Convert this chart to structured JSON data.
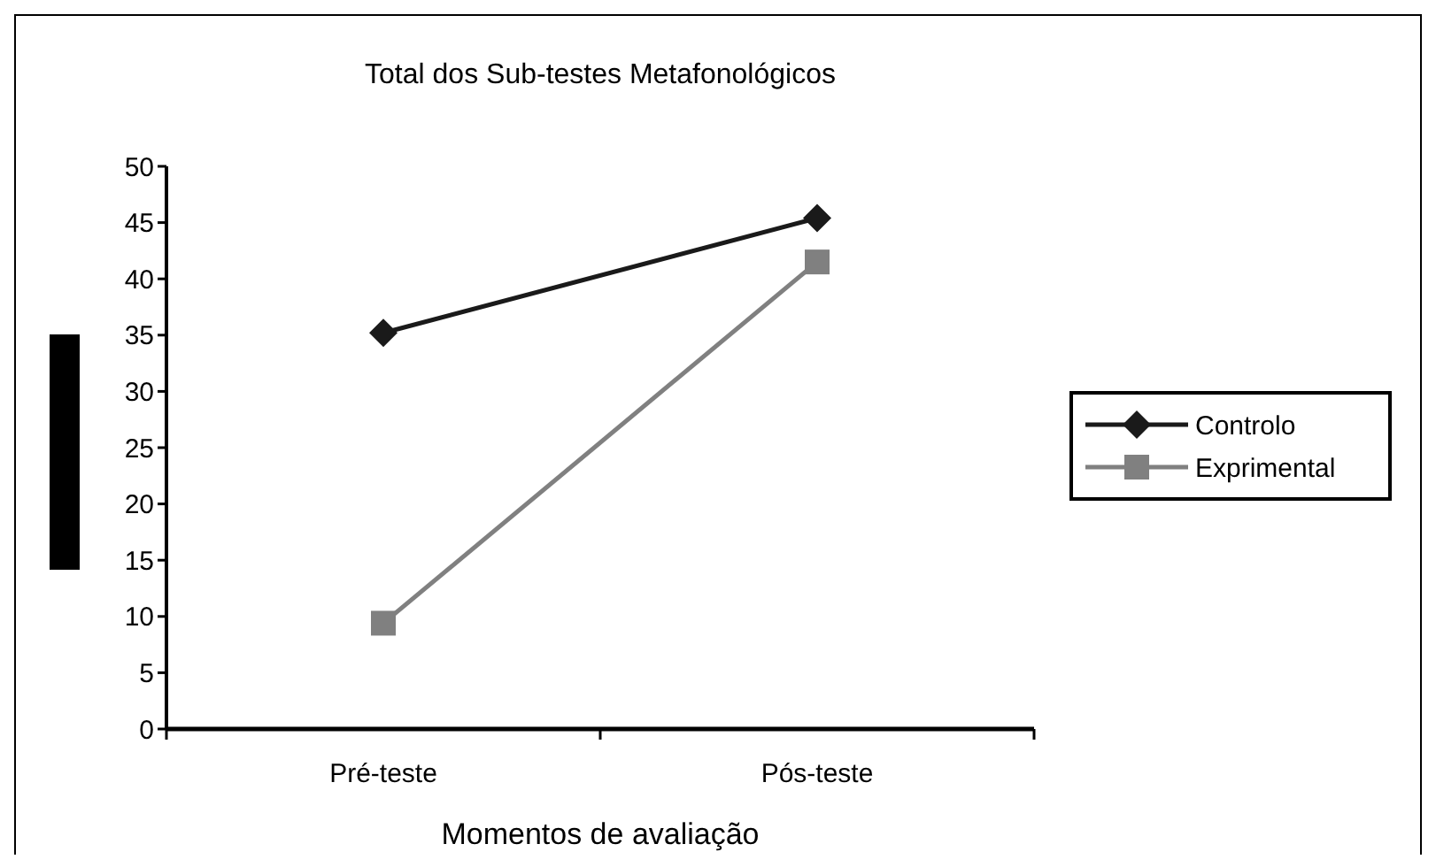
{
  "chart_data": {
    "type": "line",
    "title": "Total dos Sub-testes Metafonológicos",
    "xlabel": "Momentos de avaliação",
    "categories": [
      "Pré-teste",
      "Pós-teste"
    ],
    "series": [
      {
        "name": "Controlo",
        "color": "#1a1a1a",
        "marker": "diamond",
        "values": [
          35.2,
          45.4
        ]
      },
      {
        "name": "Exprimental",
        "color": "#808080",
        "marker": "square",
        "values": [
          9.4,
          41.5
        ]
      }
    ],
    "ylim": [
      0,
      50
    ],
    "yticks": [
      0,
      5,
      10,
      15,
      20,
      25,
      30,
      35,
      40,
      45,
      50
    ],
    "grid": false,
    "legend": "right",
    "line_style": "solid"
  }
}
